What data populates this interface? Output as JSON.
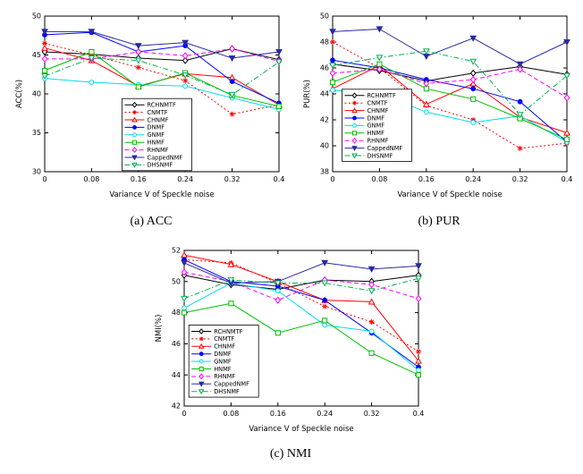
{
  "figure": {
    "captions": {
      "a": "(a) ACC",
      "b": "(b) PUR",
      "c": "(c) NMI"
    }
  },
  "chart_data": [
    {
      "type": "line",
      "title": "",
      "xlabel": "Variance V of Speckle noise",
      "ylabel": "ACC(%)",
      "x": [
        0,
        0.08,
        0.16,
        0.24,
        0.32,
        0.4
      ],
      "xtick_labels": [
        "0",
        "0.08",
        "0.16",
        "0.24",
        "0.32",
        "0.4"
      ],
      "ylim": [
        30,
        50
      ],
      "yticks": [
        30,
        35,
        40,
        45,
        50
      ],
      "grid": false,
      "legend": {
        "x": 0.33,
        "y": 0.53
      },
      "series": [
        {
          "name": "RCHNMTF",
          "color": "#000000",
          "dash": "solid",
          "marker": "diamond",
          "filled": false,
          "values": [
            45.4,
            45.1,
            44.6,
            44.3,
            45.8,
            44.4
          ]
        },
        {
          "name": "CNMTF",
          "color": "#ff0000",
          "dash": "dotted",
          "marker": "asterisk",
          "filled": false,
          "values": [
            46.5,
            45.0,
            43.4,
            41.7,
            37.4,
            38.6
          ]
        },
        {
          "name": "CHNMF",
          "color": "#ff0000",
          "dash": "solid",
          "marker": "triangle-up",
          "filled": false,
          "values": [
            45.9,
            44.3,
            41.0,
            42.6,
            42.1,
            38.6
          ]
        },
        {
          "name": "DNMF",
          "color": "#0000ff",
          "dash": "solid",
          "marker": "circle",
          "filled": true,
          "values": [
            47.6,
            47.9,
            45.4,
            46.2,
            41.6,
            38.8
          ]
        },
        {
          "name": "GNMF",
          "color": "#00dcf0",
          "dash": "solid",
          "marker": "circle",
          "filled": false,
          "values": [
            42.0,
            41.5,
            41.2,
            41.0,
            39.5,
            38.0
          ]
        },
        {
          "name": "HNMF",
          "color": "#00c000",
          "dash": "solid",
          "marker": "square",
          "filled": false,
          "values": [
            43.0,
            45.4,
            40.9,
            42.7,
            39.8,
            38.4
          ]
        },
        {
          "name": "RHNMF",
          "color": "#ff00ff",
          "dash": "dashed",
          "marker": "diamond",
          "filled": false,
          "values": [
            44.5,
            44.5,
            45.4,
            44.9,
            45.8,
            44.2
          ]
        },
        {
          "name": "CappedNMF",
          "color": "#2929a3",
          "dash": "solid",
          "marker": "triangle-down",
          "filled": true,
          "values": [
            48.0,
            48.0,
            46.2,
            46.6,
            44.6,
            45.4
          ]
        },
        {
          "name": "DHSNMF",
          "color": "#00b050",
          "dash": "dashdot",
          "marker": "triangle-down",
          "filled": false,
          "values": [
            42.3,
            44.6,
            44.3,
            42.4,
            39.9,
            44.1
          ]
        }
      ]
    },
    {
      "type": "line",
      "title": "",
      "xlabel": "Variance V of Speckle noise",
      "ylabel": "PUR(%)",
      "x": [
        0,
        0.08,
        0.16,
        0.24,
        0.32,
        0.4
      ],
      "xtick_labels": [
        "0",
        "0.08",
        "0.16",
        "0.24",
        "0.32",
        "0.4"
      ],
      "ylim": [
        38,
        50
      ],
      "yticks": [
        38,
        40,
        42,
        44,
        46,
        48,
        50
      ],
      "grid": false,
      "legend": {
        "x": 0.04,
        "y": 0.47
      },
      "series": [
        {
          "name": "RCHNMTF",
          "color": "#000000",
          "dash": "solid",
          "marker": "diamond",
          "filled": false,
          "values": [
            46.3,
            45.8,
            45.0,
            45.6,
            46.1,
            45.5
          ]
        },
        {
          "name": "CNMTF",
          "color": "#ff0000",
          "dash": "dotted",
          "marker": "asterisk",
          "filled": false,
          "values": [
            48.0,
            46.0,
            43.1,
            42.0,
            39.8,
            40.2
          ]
        },
        {
          "name": "CHNMF",
          "color": "#ff0000",
          "dash": "solid",
          "marker": "triangle-up",
          "filled": false,
          "values": [
            44.4,
            46.2,
            43.2,
            44.8,
            42.2,
            41.0
          ]
        },
        {
          "name": "DNMF",
          "color": "#0000ff",
          "dash": "solid",
          "marker": "circle",
          "filled": true,
          "values": [
            46.6,
            46.0,
            45.1,
            44.4,
            43.4,
            40.3
          ]
        },
        {
          "name": "GNMF",
          "color": "#00dcf0",
          "dash": "solid",
          "marker": "circle",
          "filled": false,
          "values": [
            44.3,
            44.0,
            42.6,
            41.8,
            42.3,
            40.3
          ]
        },
        {
          "name": "HNMF",
          "color": "#00c000",
          "dash": "solid",
          "marker": "square",
          "filled": false,
          "values": [
            44.9,
            46.3,
            44.4,
            43.6,
            42.1,
            40.5
          ]
        },
        {
          "name": "RHNMF",
          "color": "#ff00ff",
          "dash": "dashed",
          "marker": "diamond",
          "filled": false,
          "values": [
            45.6,
            45.9,
            44.8,
            45.1,
            45.9,
            43.7
          ]
        },
        {
          "name": "CappedNMF",
          "color": "#2929a3",
          "dash": "solid",
          "marker": "triangle-down",
          "filled": true,
          "values": [
            48.8,
            49.0,
            46.9,
            48.3,
            46.3,
            48.0
          ]
        },
        {
          "name": "DHSNMF",
          "color": "#00b050",
          "dash": "dashdot",
          "marker": "triangle-down",
          "filled": false,
          "values": [
            46.2,
            46.8,
            47.3,
            46.5,
            42.4,
            45.4
          ]
        }
      ]
    },
    {
      "type": "line",
      "title": "",
      "xlabel": "Variance V of Speckle noise",
      "ylabel": "NMI(%)",
      "x": [
        0,
        0.08,
        0.16,
        0.24,
        0.32,
        0.4
      ],
      "xtick_labels": [
        "0",
        "0.08",
        "0.16",
        "0.24",
        "0.32",
        "0.4"
      ],
      "ylim": [
        42,
        52
      ],
      "yticks": [
        42,
        44,
        46,
        48,
        50,
        52
      ],
      "grid": false,
      "legend": {
        "x": 0.02,
        "y": 0.48
      },
      "series": [
        {
          "name": "RCHNMTF",
          "color": "#000000",
          "dash": "solid",
          "marker": "diamond",
          "filled": false,
          "values": [
            50.4,
            49.8,
            49.5,
            50.1,
            50.0,
            50.4
          ]
        },
        {
          "name": "CNMTF",
          "color": "#ff0000",
          "dash": "dotted",
          "marker": "asterisk",
          "filled": false,
          "values": [
            51.4,
            51.2,
            49.9,
            48.4,
            47.4,
            45.5
          ]
        },
        {
          "name": "CHNMF",
          "color": "#ff0000",
          "dash": "solid",
          "marker": "triangle-up",
          "filled": false,
          "values": [
            51.7,
            51.1,
            50.0,
            48.8,
            48.7,
            44.9
          ]
        },
        {
          "name": "DNMF",
          "color": "#0000ff",
          "dash": "solid",
          "marker": "circle",
          "filled": true,
          "values": [
            51.4,
            50.0,
            49.7,
            48.8,
            46.7,
            44.5
          ]
        },
        {
          "name": "GNMF",
          "color": "#00dcf0",
          "dash": "solid",
          "marker": "circle",
          "filled": false,
          "values": [
            48.3,
            49.9,
            49.4,
            47.2,
            46.8,
            44.3
          ]
        },
        {
          "name": "HNMF",
          "color": "#00c000",
          "dash": "solid",
          "marker": "square",
          "filled": false,
          "values": [
            48.0,
            48.6,
            46.7,
            47.5,
            45.4,
            44.0
          ]
        },
        {
          "name": "RHNMF",
          "color": "#ff00ff",
          "dash": "dashed",
          "marker": "diamond",
          "filled": false,
          "values": [
            50.6,
            50.0,
            48.8,
            50.1,
            49.8,
            48.9
          ]
        },
        {
          "name": "CappedNMF",
          "color": "#2929a3",
          "dash": "solid",
          "marker": "triangle-down",
          "filled": true,
          "values": [
            51.2,
            49.9,
            50.0,
            51.2,
            50.8,
            51.0
          ]
        },
        {
          "name": "DHSNMF",
          "color": "#00b050",
          "dash": "dashdot",
          "marker": "triangle-down",
          "filled": false,
          "values": [
            48.9,
            50.1,
            49.9,
            49.9,
            49.4,
            50.2
          ]
        }
      ]
    }
  ]
}
